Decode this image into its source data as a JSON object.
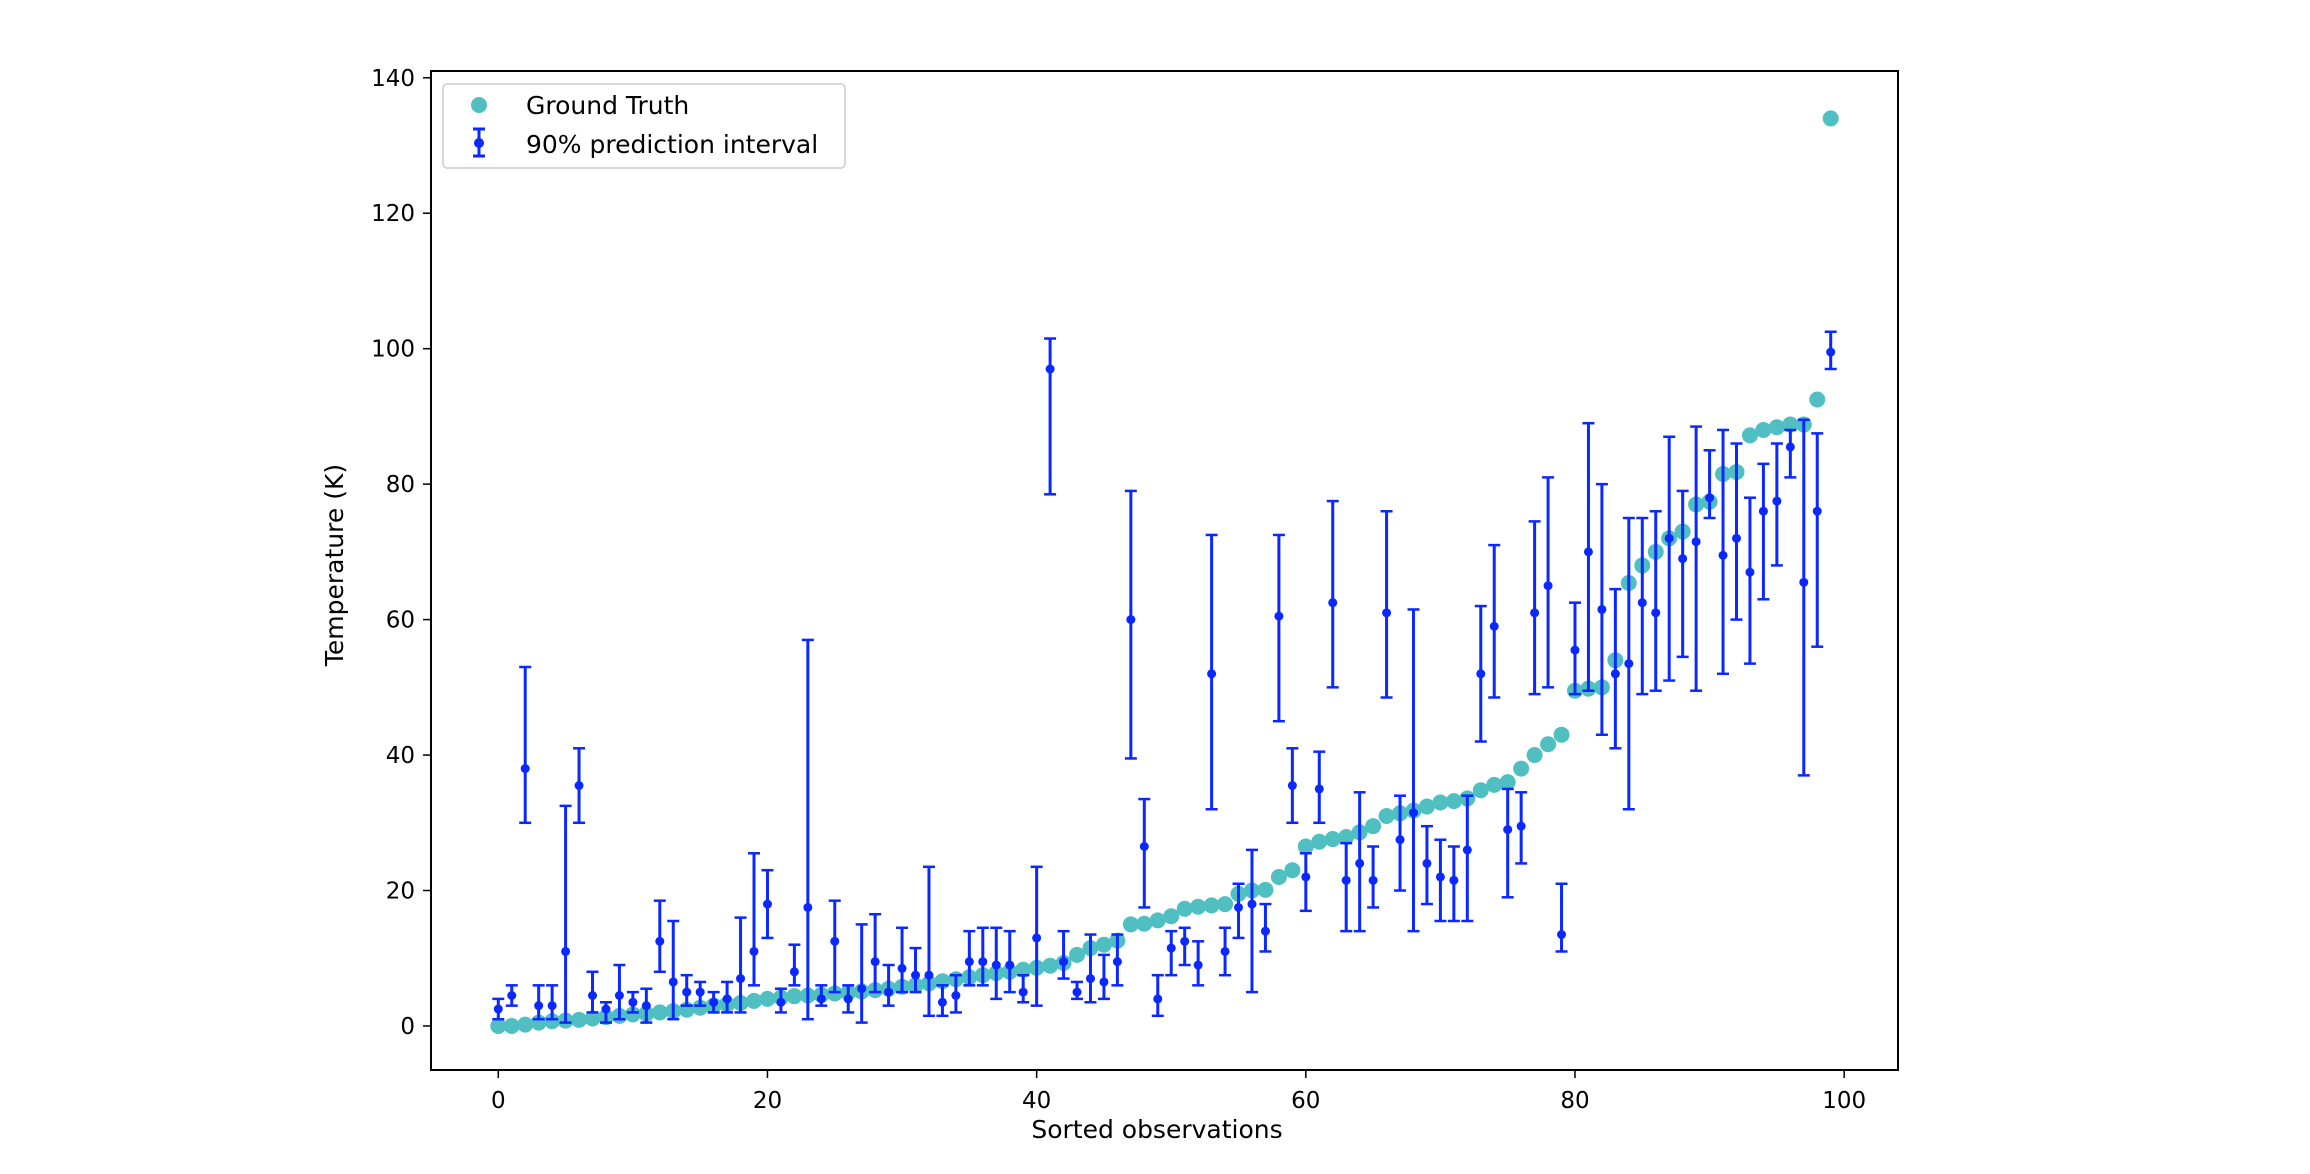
{
  "chart_data": {
    "type": "scatter",
    "title": "",
    "xlabel": "Sorted observations",
    "ylabel": "Temperature (K)",
    "xlim": [
      -5,
      104
    ],
    "ylim": [
      -6.5,
      141
    ],
    "x_ticks": [
      0,
      20,
      40,
      60,
      80,
      100
    ],
    "y_ticks": [
      0,
      20,
      40,
      60,
      80,
      100,
      120,
      140
    ],
    "grid": false,
    "legend_position": "top-left",
    "series": [
      {
        "name": "Ground Truth",
        "kind": "points",
        "color": "#4fbfc2",
        "x": [
          0,
          1,
          2,
          3,
          4,
          5,
          6,
          7,
          8,
          9,
          10,
          11,
          12,
          13,
          14,
          15,
          16,
          17,
          18,
          19,
          20,
          21,
          22,
          23,
          24,
          25,
          26,
          27,
          28,
          29,
          30,
          31,
          32,
          33,
          34,
          35,
          36,
          37,
          38,
          39,
          40,
          41,
          42,
          43,
          44,
          45,
          46,
          47,
          48,
          49,
          50,
          51,
          52,
          53,
          54,
          55,
          56,
          57,
          58,
          59,
          60,
          61,
          62,
          63,
          64,
          65,
          66,
          67,
          68,
          69,
          70,
          71,
          72,
          73,
          74,
          75,
          76,
          77,
          78,
          79,
          80,
          81,
          82,
          83,
          84,
          85,
          86,
          87,
          88,
          89,
          90,
          91,
          92,
          93,
          94,
          95,
          96,
          97,
          98,
          99
        ],
        "y": [
          0,
          0,
          0.2,
          0.5,
          0.7,
          0.8,
          0.9,
          1.1,
          1.3,
          1.5,
          1.7,
          1.8,
          2,
          2.2,
          2.4,
          2.7,
          3,
          3.2,
          3.4,
          3.7,
          4,
          4.2,
          4.4,
          4.5,
          4.6,
          4.8,
          4.9,
          5.1,
          5.3,
          5.5,
          5.8,
          6,
          6.3,
          6.6,
          6.9,
          7.2,
          7.5,
          7.8,
          8,
          8.3,
          8.6,
          8.9,
          9.3,
          10.5,
          11.5,
          12,
          12.6,
          15,
          15.1,
          15.6,
          16.2,
          17.3,
          17.6,
          17.8,
          18,
          19.5,
          20,
          20.1,
          22,
          23,
          26.5,
          27.2,
          27.6,
          27.9,
          28.6,
          29.5,
          31,
          31.4,
          31.8,
          32.4,
          33,
          33.2,
          33.6,
          34.8,
          35.6,
          36,
          38,
          40,
          41.6,
          43,
          49.5,
          49.8,
          50,
          54,
          65.4,
          68,
          70,
          72,
          73,
          77,
          77.4,
          81.5,
          81.8,
          87.2,
          88,
          88.4,
          88.8,
          88.8,
          92.5,
          134
        ]
      },
      {
        "name": "90% prediction interval",
        "kind": "errorbar",
        "color": "#0a28ff",
        "x": [
          0,
          1,
          2,
          3,
          4,
          5,
          6,
          7,
          8,
          9,
          10,
          11,
          12,
          13,
          14,
          15,
          16,
          17,
          18,
          19,
          20,
          21,
          22,
          23,
          24,
          25,
          26,
          27,
          28,
          29,
          30,
          31,
          32,
          33,
          34,
          35,
          36,
          37,
          38,
          39,
          40,
          41,
          42,
          43,
          44,
          45,
          46,
          47,
          48,
          49,
          50,
          51,
          52,
          53,
          54,
          55,
          56,
          57,
          58,
          59,
          60,
          61,
          62,
          63,
          64,
          65,
          66,
          67,
          68,
          69,
          70,
          71,
          72,
          73,
          74,
          75,
          76,
          77,
          78,
          79,
          80,
          81,
          82,
          83,
          84,
          85,
          86,
          87,
          88,
          89,
          90,
          91,
          92,
          93,
          94,
          95,
          96,
          97,
          98,
          99
        ],
        "y": [
          2.5,
          4.5,
          38,
          3,
          3,
          11,
          35.5,
          4.5,
          2.5,
          4.5,
          3.5,
          3,
          12.5,
          6.5,
          5,
          5,
          3.5,
          4,
          7,
          11,
          18,
          3.5,
          8,
          17.5,
          4,
          12.5,
          4,
          5.5,
          9.5,
          5,
          8.5,
          7.5,
          7.5,
          3.5,
          4.5,
          9.5,
          9.5,
          9,
          9,
          5,
          13,
          97,
          9.5,
          5,
          7,
          6.5,
          9.5,
          60,
          26.5,
          4,
          11.5,
          12.5,
          9,
          52,
          11,
          17.5,
          18,
          14,
          60.5,
          35.5,
          22,
          35,
          62.5,
          21.5,
          24,
          21.5,
          61,
          27.5,
          31.5,
          24,
          22,
          21.5,
          26,
          52,
          59,
          29,
          29.5,
          61,
          65,
          13.5,
          55.5,
          70,
          61.5,
          52,
          53.5,
          62.5,
          61,
          72,
          69,
          71.5,
          78,
          69.5,
          72,
          67,
          76,
          77.5,
          85.5,
          65.5,
          76,
          99.5
        ],
        "lower": [
          1,
          3,
          30,
          1,
          1,
          0.5,
          30,
          2,
          0.5,
          1,
          2,
          0.5,
          8,
          1,
          3,
          3,
          2,
          2,
          2,
          6,
          13,
          2,
          6,
          1,
          3,
          5,
          2,
          0.5,
          5,
          3,
          5,
          5,
          1.5,
          1.5,
          2,
          6,
          6,
          4,
          5,
          3.5,
          3,
          78.5,
          7,
          4,
          3.5,
          4,
          6,
          39.5,
          17.5,
          1.5,
          7.5,
          9,
          6,
          32,
          7.5,
          13,
          5,
          11,
          45,
          30,
          17,
          30,
          50,
          14,
          14,
          17.5,
          48.5,
          20,
          14,
          18,
          15.5,
          15.5,
          15.5,
          42,
          48.5,
          19,
          24,
          49,
          50,
          11,
          49,
          49.5,
          43,
          41,
          32,
          49,
          49.5,
          51,
          54.5,
          49.5,
          75,
          52,
          60,
          53.5,
          63,
          68,
          81,
          37,
          56,
          97
        ],
        "upper": [
          4,
          6,
          53,
          6,
          6,
          32.5,
          41,
          8,
          3.5,
          9,
          5,
          5.5,
          18.5,
          15.5,
          7.5,
          6.5,
          5,
          6.5,
          16,
          25.5,
          23,
          5.5,
          12,
          57,
          6,
          18.5,
          6,
          15,
          16.5,
          9,
          14.5,
          11.5,
          23.5,
          6,
          7.5,
          14,
          14.5,
          14.5,
          14,
          7.5,
          23.5,
          101.5,
          14,
          6.5,
          13.5,
          10.5,
          13.5,
          79,
          33.5,
          7.5,
          14,
          14.5,
          12.5,
          72.5,
          14.5,
          21,
          26,
          18,
          72.5,
          41,
          25.5,
          40.5,
          77.5,
          27,
          34.5,
          26.5,
          76,
          34,
          61.5,
          29.5,
          27.5,
          26.5,
          34,
          62,
          71,
          35,
          34.5,
          74.5,
          81,
          21,
          62.5,
          89,
          80,
          64.5,
          75,
          75,
          76,
          87,
          79,
          88.5,
          85,
          88,
          86,
          78,
          83,
          86,
          88,
          89.5,
          87.5,
          102.5
        ]
      }
    ]
  }
}
